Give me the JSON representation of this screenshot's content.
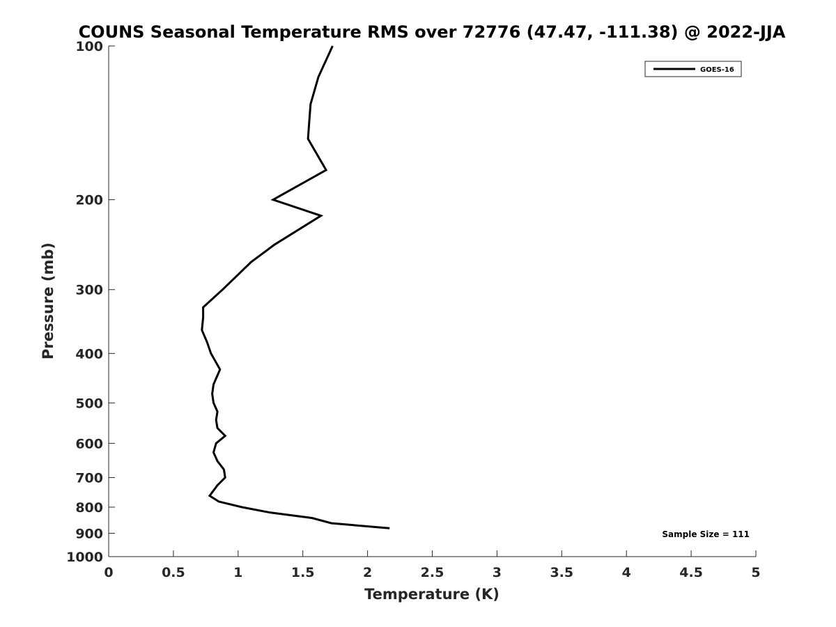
{
  "chart_data": {
    "type": "line",
    "title": "COUNS Seasonal Temperature RMS over 72776 (47.47, -111.38) @ 2022-JJA",
    "xlabel": "Temperature (K)",
    "ylabel": "Pressure (mb)",
    "xlim": [
      0,
      5
    ],
    "ylim": [
      100,
      1000
    ],
    "y_scale": "log",
    "y_reversed": true,
    "grid": false,
    "legend_placement": "top-right",
    "x_ticks": [
      "0",
      "0.5",
      "1",
      "1.5",
      "2",
      "2.5",
      "3",
      "3.5",
      "4",
      "4.5",
      "5"
    ],
    "y_ticks": [
      "100",
      "200",
      "300",
      "400",
      "500",
      "600",
      "700",
      "800",
      "900",
      "1000"
    ],
    "annotation": "Sample Size = 111",
    "series": [
      {
        "name": "GOES-16",
        "color": "#000000",
        "x": [
          1.73,
          1.62,
          1.56,
          1.55,
          1.54,
          1.68,
          1.27,
          1.64,
          1.28,
          1.1,
          0.88,
          0.73,
          0.73,
          0.72,
          0.76,
          0.79,
          0.86,
          0.81,
          0.8,
          0.81,
          0.84,
          0.83,
          0.84,
          0.9,
          0.83,
          0.81,
          0.84,
          0.89,
          0.9,
          0.84,
          0.78,
          0.85,
          1.03,
          1.25,
          1.57,
          1.72,
          2.17
        ],
        "y": [
          100,
          115,
          130,
          140,
          152,
          175,
          200,
          215,
          245,
          265,
          300,
          325,
          340,
          360,
          380,
          400,
          430,
          460,
          480,
          500,
          520,
          540,
          560,
          580,
          600,
          625,
          650,
          675,
          700,
          725,
          760,
          780,
          800,
          820,
          840,
          860,
          880
        ]
      }
    ]
  }
}
